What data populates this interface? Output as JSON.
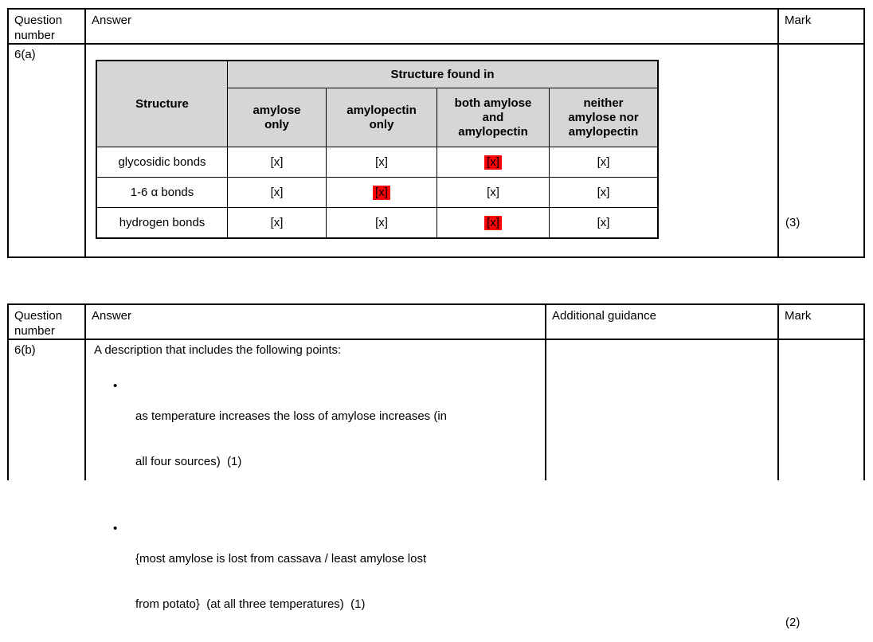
{
  "colors": {
    "outer_header_bg": "#e8e8e8",
    "inner_header_bg": "#d6d6d6",
    "highlight_red": "#fb0207",
    "border": "#000000"
  },
  "table_6a": {
    "headers": {
      "question": "Question\nnumber",
      "answer": "Answer",
      "mark": "Mark"
    },
    "question_number": "6(a)",
    "mark": "(3)",
    "inner_table": {
      "corner_header": "Structure",
      "span_header": "Structure found in",
      "column_headers": [
        "amylose\nonly",
        "amylopectin\nonly",
        "both amylose\nand\namylopectin",
        "neither\namylose nor\namylopectin"
      ],
      "rows": [
        {
          "label": "glycosidic bonds",
          "cells": [
            {
              "t": "[x]",
              "hl": false
            },
            {
              "t": "[x]",
              "hl": false
            },
            {
              "t": "[x]",
              "hl": true
            },
            {
              "t": "[x]",
              "hl": false
            }
          ]
        },
        {
          "label": "1-6 α bonds",
          "cells": [
            {
              "t": "[x]",
              "hl": false
            },
            {
              "t": "[x]",
              "hl": true
            },
            {
              "t": "[x]",
              "hl": false
            },
            {
              "t": "[x]",
              "hl": false
            }
          ]
        },
        {
          "label": "hydrogen bonds",
          "cells": [
            {
              "t": "[x]",
              "hl": false
            },
            {
              "t": "[x]",
              "hl": false
            },
            {
              "t": "[x]",
              "hl": true
            },
            {
              "t": "[x]",
              "hl": false
            }
          ]
        }
      ]
    }
  },
  "table_6b": {
    "headers": {
      "question": "Question\nnumber",
      "answer": "Answer",
      "guidance": "Additional guidance",
      "mark": "Mark"
    },
    "question_number": "6(b)",
    "answer_intro": "A description that includes the following points:",
    "bullet_glyph": "•",
    "bullets": [
      {
        "line1": "as temperature increases the loss of amylose increases (in",
        "line2": "all four sources)  (1)"
      },
      {
        "line1": "{most amylose is lost from cassava / least amylose lost",
        "line2": "from potato}  (at all three temperatures)  (1)"
      }
    ],
    "additional_guidance": "",
    "mark": "(2)"
  }
}
